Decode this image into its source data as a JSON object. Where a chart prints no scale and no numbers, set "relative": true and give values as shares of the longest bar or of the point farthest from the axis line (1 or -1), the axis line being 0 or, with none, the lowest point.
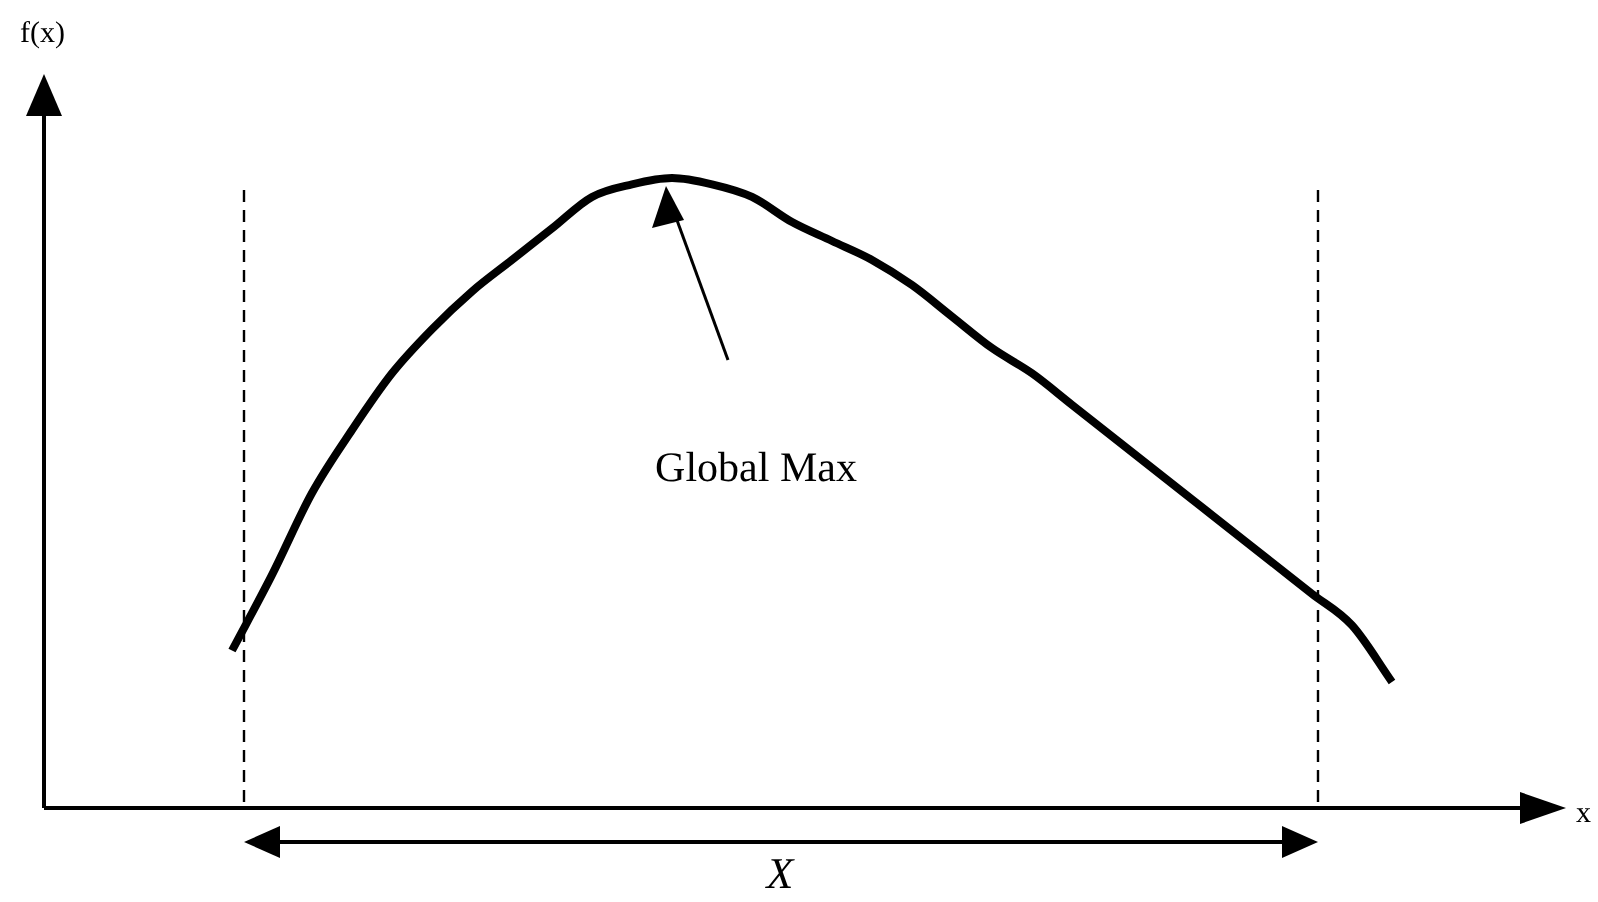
{
  "chart_data": {
    "type": "line",
    "relative": true,
    "categories": [
      null,
      null,
      null,
      null,
      null,
      null,
      null,
      null,
      null,
      null,
      null,
      null,
      null,
      null,
      null,
      null,
      null,
      null,
      null,
      null,
      null,
      null,
      null,
      null,
      null,
      null,
      null,
      null,
      null,
      null
    ],
    "series": [
      {
        "color": "#000000",
        "values": [
          0.25,
          0.37,
          0.5,
          0.6,
          0.69,
          0.76,
          0.82,
          0.87,
          0.92,
          0.97,
          0.99,
          1,
          0.99,
          0.97,
          0.93,
          0.9,
          0.87,
          0.83,
          0.78,
          0.73,
          0.69,
          0.64,
          0.59,
          0.54,
          0.49,
          0.44,
          0.39,
          0.34,
          0.29,
          0.2
        ]
      }
    ],
    "annotations": [
      "Global Max",
      "X",
      "f(x)",
      "x"
    ],
    "grid": false,
    "legend": false,
    "marker": "none",
    "line_style": "solid"
  }
}
